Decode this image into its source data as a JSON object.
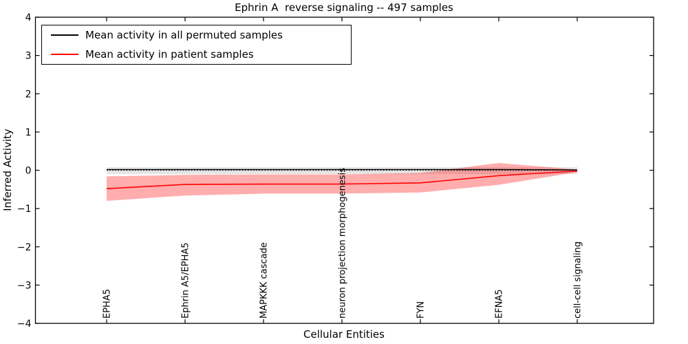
{
  "chart_data": {
    "type": "line",
    "title": "Ephrin A  reverse signaling -- 497 samples",
    "xlabel": "Cellular Entities",
    "ylabel": "Inferred Activity",
    "categories": [
      "EPHA5",
      "Ephrin A5/EPHA5",
      "MAPKKK cascade",
      "neuron projection morphogenesis",
      "FYN",
      "EFNA5",
      "cell-cell signaling"
    ],
    "xtick_rotation": 90,
    "ylim": [
      -4,
      4
    ],
    "yticks": [
      4,
      3,
      2,
      1,
      0,
      -1,
      -2,
      -3,
      -4
    ],
    "ytick_labels": [
      "4",
      "3",
      "2",
      "1",
      "0",
      "−1",
      "−2",
      "−3",
      "−4"
    ],
    "grid": false,
    "legend_position": "upper left",
    "series": [
      {
        "id": "permuted",
        "name": "Mean activity in all permuted samples",
        "color": "#000000",
        "values": [
          0.02,
          0.02,
          0.02,
          0.02,
          0.02,
          0.02,
          0.01
        ]
      },
      {
        "id": "patient",
        "name": "Mean activity in patient samples",
        "color": "#ff0000",
        "values": [
          -0.48,
          -0.37,
          -0.36,
          -0.36,
          -0.33,
          -0.14,
          -0.02
        ]
      }
    ],
    "bands": [
      {
        "series": "permuted",
        "color": "#000000",
        "opacity": 0.1,
        "upper": [
          0.08,
          0.08,
          0.08,
          0.08,
          0.08,
          0.08,
          0.08
        ],
        "lower": [
          -0.1,
          -0.1,
          -0.1,
          -0.1,
          -0.1,
          -0.1,
          -0.1
        ]
      },
      {
        "series": "patient",
        "color": "#ff0000",
        "opacity": 0.32,
        "upper": [
          -0.16,
          -0.12,
          -0.11,
          -0.11,
          -0.07,
          0.19,
          0.02
        ],
        "lower": [
          -0.8,
          -0.66,
          -0.61,
          -0.61,
          -0.58,
          -0.38,
          -0.05
        ]
      }
    ],
    "zero_line": {
      "y": 0,
      "style": "dotted",
      "color": "#000000"
    }
  }
}
